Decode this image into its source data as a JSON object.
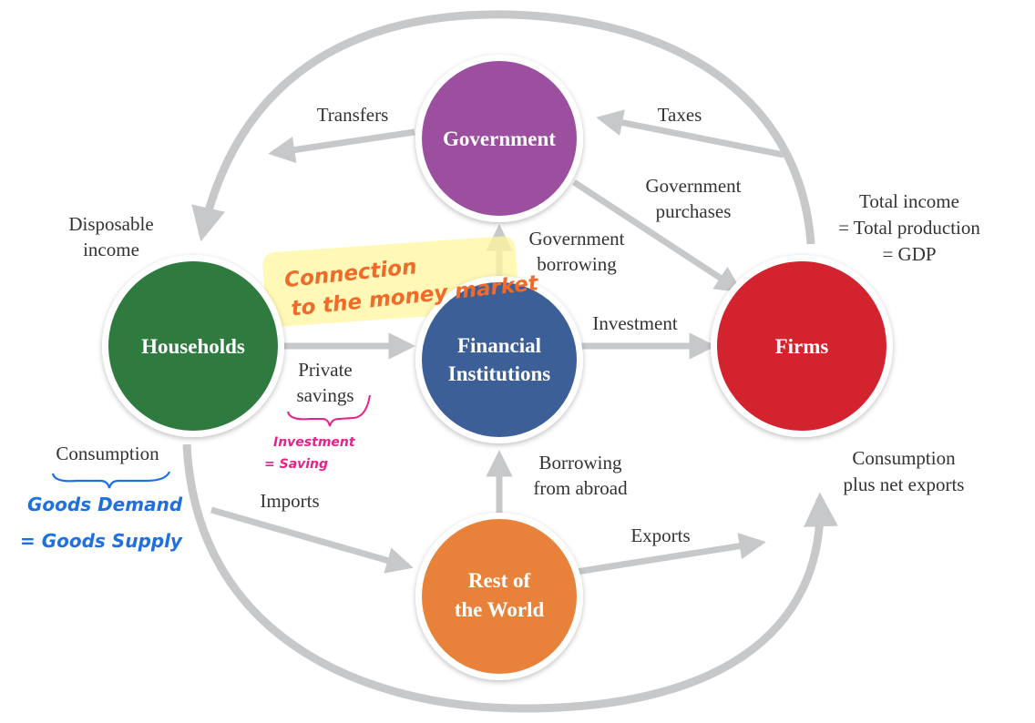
{
  "nodes": {
    "government": {
      "line1": "Government",
      "color": "#9b4f9e"
    },
    "households": {
      "line1": "Households",
      "color": "#2f7a3e"
    },
    "financial": {
      "line1": "Financial",
      "line2": "Institutions",
      "color": "#3d5f98"
    },
    "firms": {
      "line1": "Firms",
      "color": "#d2232e"
    },
    "rest_of_world": {
      "line1": "Rest of",
      "line2": "the World",
      "color": "#e8823a"
    }
  },
  "flows": {
    "transfers": "Transfers",
    "taxes": "Taxes",
    "disposable_income": {
      "line1": "Disposable",
      "line2": "income"
    },
    "government_purchases": {
      "line1": "Government",
      "line2": "purchases"
    },
    "government_borrowing": {
      "line1": "Government",
      "line2": "borrowing"
    },
    "total_income": {
      "line1": "Total income",
      "line2": "= Total production",
      "line3": "= GDP"
    },
    "investment": "Investment",
    "private_savings": {
      "line1": "Private",
      "line2": "savings"
    },
    "consumption": "Consumption",
    "borrowing_from_abroad": {
      "line1": "Borrowing",
      "line2": "from abroad"
    },
    "consumption_plus_net_exports": {
      "line1": "Consumption",
      "line2": "plus net exports"
    },
    "imports": "Imports",
    "exports": "Exports"
  },
  "annotations": {
    "money_market": {
      "line1": "Connection",
      "line2": "to the money market",
      "color": "#f06a2a",
      "highlight": "#fff176"
    },
    "investment_saving": {
      "line1": "Investment",
      "line2": "= Saving",
      "color": "#e6218b"
    },
    "goods": {
      "line1": "Goods Demand",
      "line2": "= Goods Supply",
      "color": "#1e6fe0"
    }
  },
  "colors": {
    "arrow": "#c7c8ca",
    "text": "#333333"
  }
}
